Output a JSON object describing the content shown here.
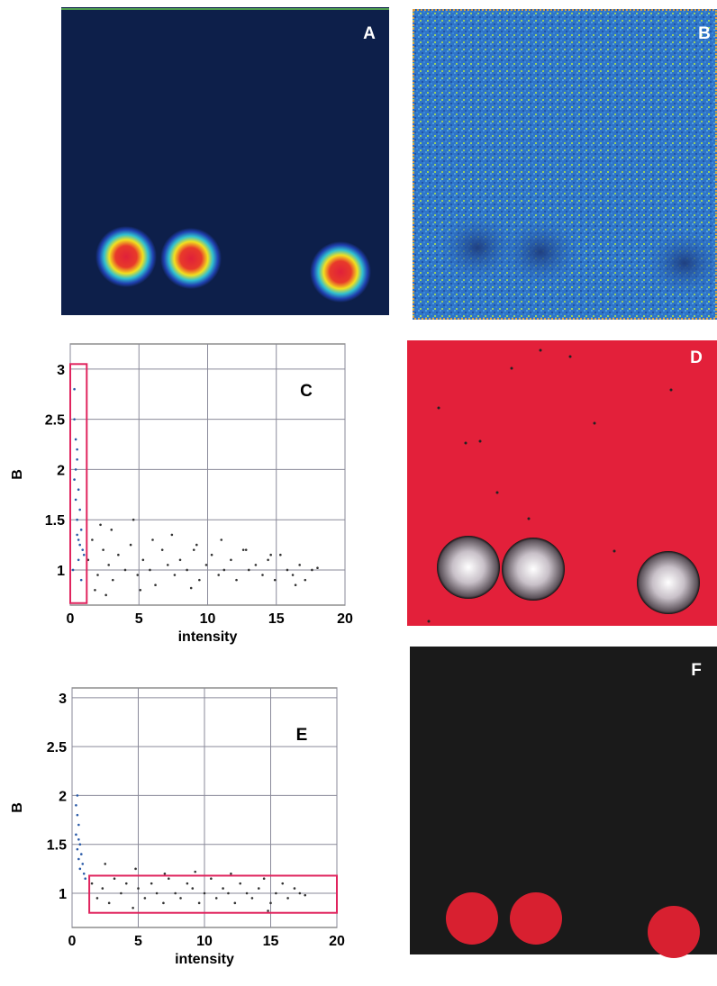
{
  "chart_data": [
    {
      "type": "scatter",
      "annotation": "C",
      "x_label": "intensity",
      "y_label": "B",
      "xlim": [
        0,
        20
      ],
      "ylim": [
        0.65,
        3.25
      ],
      "xticks": [
        0,
        5,
        10,
        15,
        20
      ],
      "yticks": [
        1,
        1.5,
        2,
        2.5,
        3
      ],
      "grid": true,
      "gate": {
        "x": [
          0,
          1.2
        ],
        "y": [
          0.67,
          3.05
        ],
        "color": "#e0245e"
      },
      "series": [
        {
          "color": "#2a5aa8",
          "x": [
            0.3,
            0.4,
            0.5,
            0.3,
            0.6,
            0.4,
            0.7,
            0.5,
            0.8,
            0.5,
            0.6,
            0.9,
            0.4,
            0.7,
            1.0,
            0.6,
            0.3,
            0.5,
            0.2,
            0.8
          ],
          "y": [
            2.5,
            2.3,
            2.1,
            1.9,
            1.8,
            1.7,
            1.6,
            1.5,
            1.4,
            1.35,
            1.3,
            1.2,
            2.0,
            1.25,
            1.15,
            1.1,
            2.8,
            2.2,
            1.0,
            0.9
          ]
        },
        {
          "color": "#333333",
          "x": [
            1.3,
            1.6,
            2.0,
            2.4,
            2.8,
            3.1,
            3.5,
            4.0,
            4.4,
            4.9,
            5.3,
            5.8,
            6.2,
            6.7,
            7.1,
            7.6,
            8.0,
            8.5,
            9.0,
            9.4,
            9.9,
            10.3,
            10.8,
            11.2,
            11.7,
            12.1,
            12.6,
            13.0,
            13.5,
            14.0,
            14.4,
            14.9,
            15.3,
            15.8,
            16.2,
            16.7,
            17.1,
            17.6,
            18.0,
            2.2,
            3.0,
            4.6,
            6.0,
            7.4,
            9.2,
            11.0,
            12.8,
            14.6,
            16.4,
            1.8,
            2.6,
            5.1,
            8.8
          ],
          "y": [
            1.1,
            1.3,
            0.95,
            1.2,
            1.05,
            0.9,
            1.15,
            1.0,
            1.25,
            0.95,
            1.1,
            1.0,
            0.85,
            1.2,
            1.05,
            0.95,
            1.1,
            1.0,
            1.2,
            0.9,
            1.05,
            1.15,
            0.95,
            1.0,
            1.1,
            0.9,
            1.2,
            1.0,
            1.05,
            0.95,
            1.1,
            0.9,
            1.15,
            1.0,
            0.95,
            1.05,
            0.9,
            1.0,
            1.02,
            1.45,
            1.4,
            1.5,
            1.3,
            1.35,
            1.25,
            1.3,
            1.2,
            1.15,
            0.85,
            0.8,
            0.75,
            0.8,
            0.82
          ]
        }
      ]
    },
    {
      "type": "scatter",
      "annotation": "E",
      "x_label": "intensity",
      "y_label": "B",
      "xlim": [
        0,
        20
      ],
      "ylim": [
        0.65,
        3.1
      ],
      "xticks": [
        0,
        5,
        10,
        15,
        20
      ],
      "yticks": [
        1,
        1.5,
        2,
        2.5,
        3
      ],
      "grid": true,
      "gate": {
        "x": [
          1.3,
          20
        ],
        "y": [
          0.8,
          1.18
        ],
        "color": "#e0245e"
      },
      "series": [
        {
          "color": "#2a5aa8",
          "x": [
            0.3,
            0.4,
            0.5,
            0.3,
            0.6,
            0.4,
            0.7,
            0.5,
            0.8,
            0.6,
            0.9,
            0.5,
            0.4,
            1.0
          ],
          "y": [
            1.9,
            1.8,
            1.7,
            1.6,
            1.5,
            1.45,
            1.4,
            1.35,
            1.3,
            1.25,
            1.2,
            1.55,
            2.0,
            1.15
          ]
        },
        {
          "color": "#333333",
          "x": [
            1.5,
            1.9,
            2.3,
            2.8,
            3.2,
            3.7,
            4.1,
            4.6,
            5.0,
            5.5,
            6.0,
            6.4,
            6.9,
            7.3,
            7.8,
            8.2,
            8.7,
            9.1,
            9.6,
            10.0,
            10.5,
            10.9,
            11.4,
            11.8,
            12.3,
            12.7,
            13.2,
            13.6,
            14.1,
            14.5,
            15.0,
            15.4,
            15.9,
            16.3,
            16.8,
            17.2,
            17.6,
            2.5,
            4.8,
            7.0,
            9.3,
            12.0,
            14.8
          ],
          "y": [
            1.1,
            0.95,
            1.05,
            0.9,
            1.15,
            1.0,
            1.1,
            0.85,
            1.05,
            0.95,
            1.1,
            1.0,
            0.9,
            1.15,
            1.0,
            0.95,
            1.1,
            1.05,
            0.9,
            1.0,
            1.15,
            0.95,
            1.05,
            1.0,
            0.9,
            1.1,
            1.0,
            0.95,
            1.05,
            1.15,
            0.9,
            1.0,
            1.1,
            0.95,
            1.05,
            1.0,
            0.98,
            1.3,
            1.25,
            1.2,
            1.22,
            1.2,
            0.82
          ]
        }
      ]
    }
  ],
  "images": [
    {
      "label": "A"
    },
    {
      "label": "B"
    },
    {
      "label": "D"
    },
    {
      "label": "F"
    }
  ]
}
